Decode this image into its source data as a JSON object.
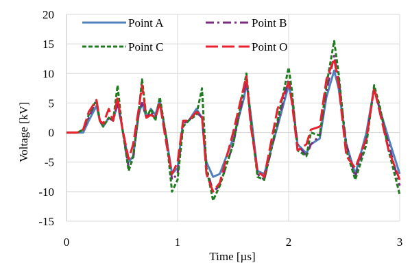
{
  "chart_data": {
    "type": "line",
    "xlabel": "Time [µs]",
    "ylabel": "Voltage [kV]",
    "xlim": [
      0,
      3
    ],
    "ylim": [
      -15,
      20
    ],
    "x_ticks": [
      0,
      1,
      2,
      3
    ],
    "x_tick_labels": [
      "0",
      "1",
      "2",
      "3"
    ],
    "y_ticks": [
      20,
      15,
      10,
      5,
      0,
      -5,
      -10,
      -15
    ],
    "y_tick_labels": [
      "20",
      "15",
      "10",
      "5",
      "0",
      "-5",
      "-10",
      "-15"
    ],
    "grid": "vertical and horizontal",
    "legend_position": "top",
    "series": [
      {
        "name": "Point A",
        "color": "#4f81bd",
        "dash": "solid",
        "points": [
          [
            0,
            0
          ],
          [
            0.1,
            0
          ],
          [
            0.15,
            0
          ],
          [
            0.2,
            2
          ],
          [
            0.27,
            4.5
          ],
          [
            0.3,
            2
          ],
          [
            0.33,
            1
          ],
          [
            0.38,
            2.5
          ],
          [
            0.42,
            2
          ],
          [
            0.46,
            5
          ],
          [
            0.5,
            1
          ],
          [
            0.56,
            -5
          ],
          [
            0.6,
            -4
          ],
          [
            0.65,
            3
          ],
          [
            0.68,
            5
          ],
          [
            0.72,
            2.5
          ],
          [
            0.76,
            4
          ],
          [
            0.8,
            3
          ],
          [
            0.84,
            5.5
          ],
          [
            0.9,
            -1
          ],
          [
            0.95,
            -7
          ],
          [
            1.0,
            -6
          ],
          [
            1.05,
            2
          ],
          [
            1.1,
            2
          ],
          [
            1.17,
            4
          ],
          [
            1.22,
            2.5
          ],
          [
            1.26,
            -5
          ],
          [
            1.32,
            -7.5
          ],
          [
            1.38,
            -7
          ],
          [
            1.5,
            -1
          ],
          [
            1.6,
            6
          ],
          [
            1.62,
            8.5
          ],
          [
            1.66,
            3
          ],
          [
            1.72,
            -6.5
          ],
          [
            1.78,
            -7
          ],
          [
            1.9,
            1
          ],
          [
            2.0,
            8
          ],
          [
            2.03,
            5.5
          ],
          [
            2.08,
            -2
          ],
          [
            2.16,
            -3.5
          ],
          [
            2.2,
            -2
          ],
          [
            2.28,
            -1
          ],
          [
            2.34,
            6
          ],
          [
            2.41,
            10.5
          ],
          [
            2.45,
            7.5
          ],
          [
            2.52,
            -2
          ],
          [
            2.6,
            -7
          ],
          [
            2.7,
            0
          ],
          [
            2.77,
            7.5
          ],
          [
            2.82,
            4
          ],
          [
            2.9,
            -1
          ],
          [
            3.0,
            -7
          ]
        ]
      },
      {
        "name": "Point B",
        "color": "#7b2b7f",
        "dash": "dashdot",
        "points": [
          [
            0,
            0
          ],
          [
            0.1,
            0
          ],
          [
            0.15,
            0.5
          ],
          [
            0.2,
            2.5
          ],
          [
            0.27,
            5.5
          ],
          [
            0.3,
            2
          ],
          [
            0.33,
            1
          ],
          [
            0.38,
            2.5
          ],
          [
            0.42,
            2
          ],
          [
            0.46,
            5
          ],
          [
            0.5,
            1
          ],
          [
            0.56,
            -6
          ],
          [
            0.6,
            -4.5
          ],
          [
            0.65,
            3.5
          ],
          [
            0.68,
            5
          ],
          [
            0.72,
            2.5
          ],
          [
            0.76,
            3.5
          ],
          [
            0.8,
            2.5
          ],
          [
            0.84,
            5
          ],
          [
            0.9,
            -1
          ],
          [
            0.95,
            -8
          ],
          [
            1.0,
            -7
          ],
          [
            1.05,
            1.5
          ],
          [
            1.1,
            2
          ],
          [
            1.17,
            3.5
          ],
          [
            1.22,
            2.5
          ],
          [
            1.26,
            -6
          ],
          [
            1.32,
            -10
          ],
          [
            1.38,
            -9
          ],
          [
            1.5,
            -2
          ],
          [
            1.6,
            7
          ],
          [
            1.62,
            9
          ],
          [
            1.66,
            2
          ],
          [
            1.72,
            -7
          ],
          [
            1.78,
            -8
          ],
          [
            1.9,
            1.5
          ],
          [
            2.0,
            9
          ],
          [
            2.03,
            6
          ],
          [
            2.08,
            -2
          ],
          [
            2.16,
            -4
          ],
          [
            2.2,
            -2
          ],
          [
            2.28,
            -0.5
          ],
          [
            2.34,
            7
          ],
          [
            2.41,
            13
          ],
          [
            2.45,
            9
          ],
          [
            2.52,
            -2
          ],
          [
            2.6,
            -7.5
          ],
          [
            2.7,
            -1
          ],
          [
            2.77,
            7.5
          ],
          [
            2.82,
            4
          ],
          [
            2.9,
            -2
          ],
          [
            3.0,
            -9
          ]
        ]
      },
      {
        "name": "Point C",
        "color": "#1e7b1e",
        "dash": "dash",
        "points": [
          [
            0,
            0
          ],
          [
            0.1,
            0
          ],
          [
            0.15,
            0.5
          ],
          [
            0.2,
            3
          ],
          [
            0.27,
            5.5
          ],
          [
            0.3,
            2
          ],
          [
            0.33,
            1
          ],
          [
            0.38,
            2.5
          ],
          [
            0.42,
            2
          ],
          [
            0.46,
            8
          ],
          [
            0.5,
            1
          ],
          [
            0.56,
            -6.5
          ],
          [
            0.6,
            -4
          ],
          [
            0.65,
            3.5
          ],
          [
            0.68,
            9
          ],
          [
            0.72,
            2.5
          ],
          [
            0.76,
            4
          ],
          [
            0.8,
            2
          ],
          [
            0.84,
            6
          ],
          [
            0.9,
            -1
          ],
          [
            0.95,
            -10
          ],
          [
            1.0,
            -8
          ],
          [
            1.05,
            1
          ],
          [
            1.1,
            2
          ],
          [
            1.17,
            3
          ],
          [
            1.22,
            7.5
          ],
          [
            1.26,
            -6
          ],
          [
            1.32,
            -11.5
          ],
          [
            1.38,
            -9
          ],
          [
            1.5,
            -2
          ],
          [
            1.6,
            8
          ],
          [
            1.62,
            10
          ],
          [
            1.66,
            2
          ],
          [
            1.72,
            -7.5
          ],
          [
            1.78,
            -8
          ],
          [
            1.9,
            2
          ],
          [
            2.0,
            11
          ],
          [
            2.03,
            7
          ],
          [
            2.08,
            -3
          ],
          [
            2.16,
            -4
          ],
          [
            2.2,
            0
          ],
          [
            2.28,
            -0.5
          ],
          [
            2.34,
            8
          ],
          [
            2.41,
            15.5
          ],
          [
            2.45,
            10
          ],
          [
            2.52,
            -3
          ],
          [
            2.6,
            -8
          ],
          [
            2.7,
            -2
          ],
          [
            2.77,
            8
          ],
          [
            2.82,
            4.5
          ],
          [
            2.9,
            -3
          ],
          [
            3.0,
            -10.5
          ]
        ]
      },
      {
        "name": "Point O",
        "color": "#e8212e",
        "dash": "longdash",
        "points": [
          [
            0,
            0
          ],
          [
            0.1,
            0
          ],
          [
            0.15,
            0.5
          ],
          [
            0.2,
            3.5
          ],
          [
            0.27,
            5.5
          ],
          [
            0.3,
            2
          ],
          [
            0.33,
            1.5
          ],
          [
            0.38,
            4
          ],
          [
            0.42,
            2
          ],
          [
            0.46,
            6
          ],
          [
            0.5,
            1
          ],
          [
            0.56,
            -4.5
          ],
          [
            0.6,
            -2
          ],
          [
            0.65,
            4
          ],
          [
            0.68,
            8
          ],
          [
            0.72,
            2.5
          ],
          [
            0.76,
            3
          ],
          [
            0.8,
            2.5
          ],
          [
            0.84,
            5
          ],
          [
            0.9,
            -2
          ],
          [
            0.95,
            -7
          ],
          [
            1.0,
            -5
          ],
          [
            1.05,
            2
          ],
          [
            1.1,
            2
          ],
          [
            1.17,
            3.5
          ],
          [
            1.22,
            3
          ],
          [
            1.26,
            -7
          ],
          [
            1.32,
            -10
          ],
          [
            1.38,
            -8.5
          ],
          [
            1.5,
            0
          ],
          [
            1.6,
            8
          ],
          [
            1.62,
            9.5
          ],
          [
            1.66,
            1
          ],
          [
            1.72,
            -6.5
          ],
          [
            1.78,
            -7.5
          ],
          [
            1.9,
            4
          ],
          [
            2.0,
            8.5
          ],
          [
            2.03,
            5
          ],
          [
            2.08,
            -3
          ],
          [
            2.16,
            -2
          ],
          [
            2.2,
            0.5
          ],
          [
            2.28,
            1
          ],
          [
            2.34,
            9
          ],
          [
            2.41,
            12.5
          ],
          [
            2.45,
            8
          ],
          [
            2.52,
            -4
          ],
          [
            2.6,
            -6
          ],
          [
            2.7,
            -1
          ],
          [
            2.77,
            7.5
          ],
          [
            2.82,
            3.5
          ],
          [
            2.9,
            -3
          ],
          [
            3.0,
            -8
          ]
        ]
      }
    ]
  }
}
